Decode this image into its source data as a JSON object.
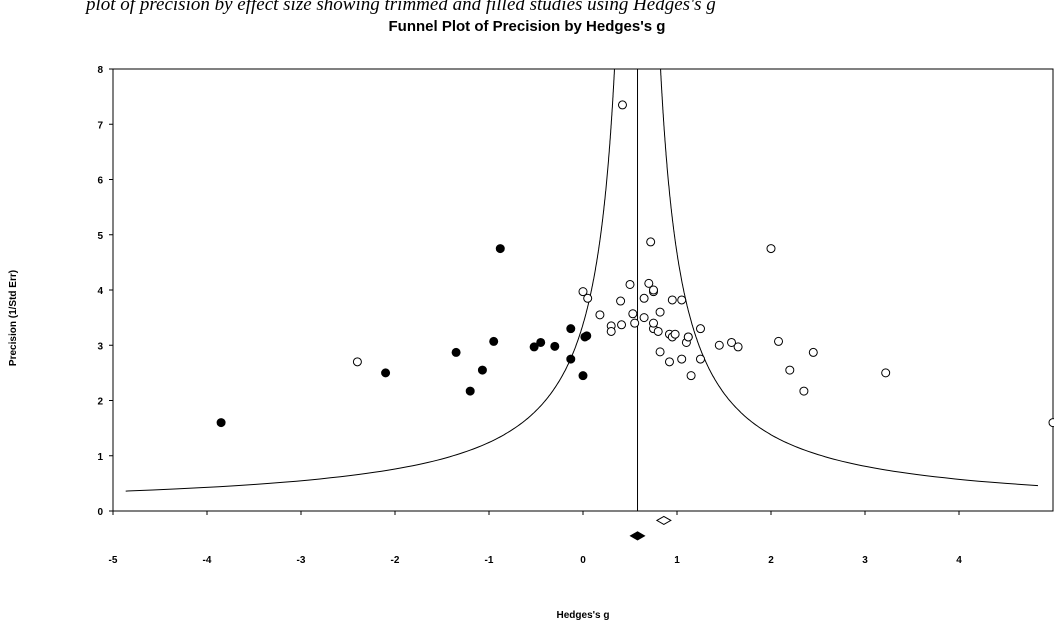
{
  "caption": "plot of precision by effect size showing trimmed and filled studies using Hedges's g",
  "chart_data": {
    "type": "scatter",
    "title": "Funnel Plot of Precision by Hedges's g",
    "xlabel": "Hedges's g",
    "ylabel": "Precision (1/Std Err)",
    "xlim": [
      -5,
      5
    ],
    "ylim": [
      0,
      8
    ],
    "xticks": [
      -5,
      -4,
      -3,
      -2,
      -1,
      0,
      1,
      2,
      3,
      4
    ],
    "yticks": [
      0,
      1,
      2,
      3,
      4,
      5,
      6,
      7,
      8
    ],
    "grid": false,
    "combined_effect": 0.58,
    "filled_studies": [
      [
        -3.85,
        1.6
      ],
      [
        -2.1,
        2.5
      ],
      [
        -1.35,
        2.87
      ],
      [
        -1.2,
        2.17
      ],
      [
        -1.07,
        2.55
      ],
      [
        -0.95,
        3.07
      ],
      [
        -0.88,
        4.75
      ],
      [
        -0.52,
        2.97
      ],
      [
        -0.45,
        3.05
      ],
      [
        -0.3,
        2.98
      ],
      [
        -0.13,
        3.3
      ],
      [
        -0.13,
        2.75
      ],
      [
        0.0,
        2.45
      ],
      [
        0.02,
        3.15
      ],
      [
        0.04,
        3.17
      ]
    ],
    "observed_studies": [
      [
        -2.4,
        2.7
      ],
      [
        0.0,
        3.97
      ],
      [
        0.05,
        3.85
      ],
      [
        0.18,
        3.55
      ],
      [
        0.3,
        3.35
      ],
      [
        0.3,
        3.25
      ],
      [
        0.4,
        3.8
      ],
      [
        0.41,
        3.37
      ],
      [
        0.42,
        7.35
      ],
      [
        0.5,
        4.1
      ],
      [
        0.53,
        3.57
      ],
      [
        0.55,
        3.4
      ],
      [
        0.65,
        3.5
      ],
      [
        0.65,
        3.85
      ],
      [
        0.7,
        4.12
      ],
      [
        0.72,
        4.87
      ],
      [
        0.75,
        3.97
      ],
      [
        0.75,
        4.0
      ],
      [
        0.75,
        3.3
      ],
      [
        0.75,
        3.4
      ],
      [
        0.8,
        3.25
      ],
      [
        0.82,
        3.6
      ],
      [
        0.82,
        2.88
      ],
      [
        0.92,
        3.2
      ],
      [
        0.92,
        2.7
      ],
      [
        0.95,
        3.82
      ],
      [
        0.95,
        3.15
      ],
      [
        0.98,
        3.2
      ],
      [
        1.05,
        3.82
      ],
      [
        1.05,
        2.75
      ],
      [
        1.1,
        3.05
      ],
      [
        1.12,
        3.15
      ],
      [
        1.12,
        3.15
      ],
      [
        1.15,
        2.45
      ],
      [
        1.25,
        3.3
      ],
      [
        1.25,
        2.75
      ],
      [
        1.45,
        3.0
      ],
      [
        1.58,
        3.05
      ],
      [
        1.65,
        2.97
      ],
      [
        2.0,
        4.75
      ],
      [
        2.08,
        3.07
      ],
      [
        2.2,
        2.55
      ],
      [
        2.35,
        2.17
      ],
      [
        2.45,
        2.87
      ],
      [
        3.22,
        2.5
      ],
      [
        5.0,
        1.6
      ]
    ],
    "summary_observed": [
      0.86,
      -0.17
    ],
    "summary_adjusted": [
      0.58,
      -0.45
    ]
  }
}
